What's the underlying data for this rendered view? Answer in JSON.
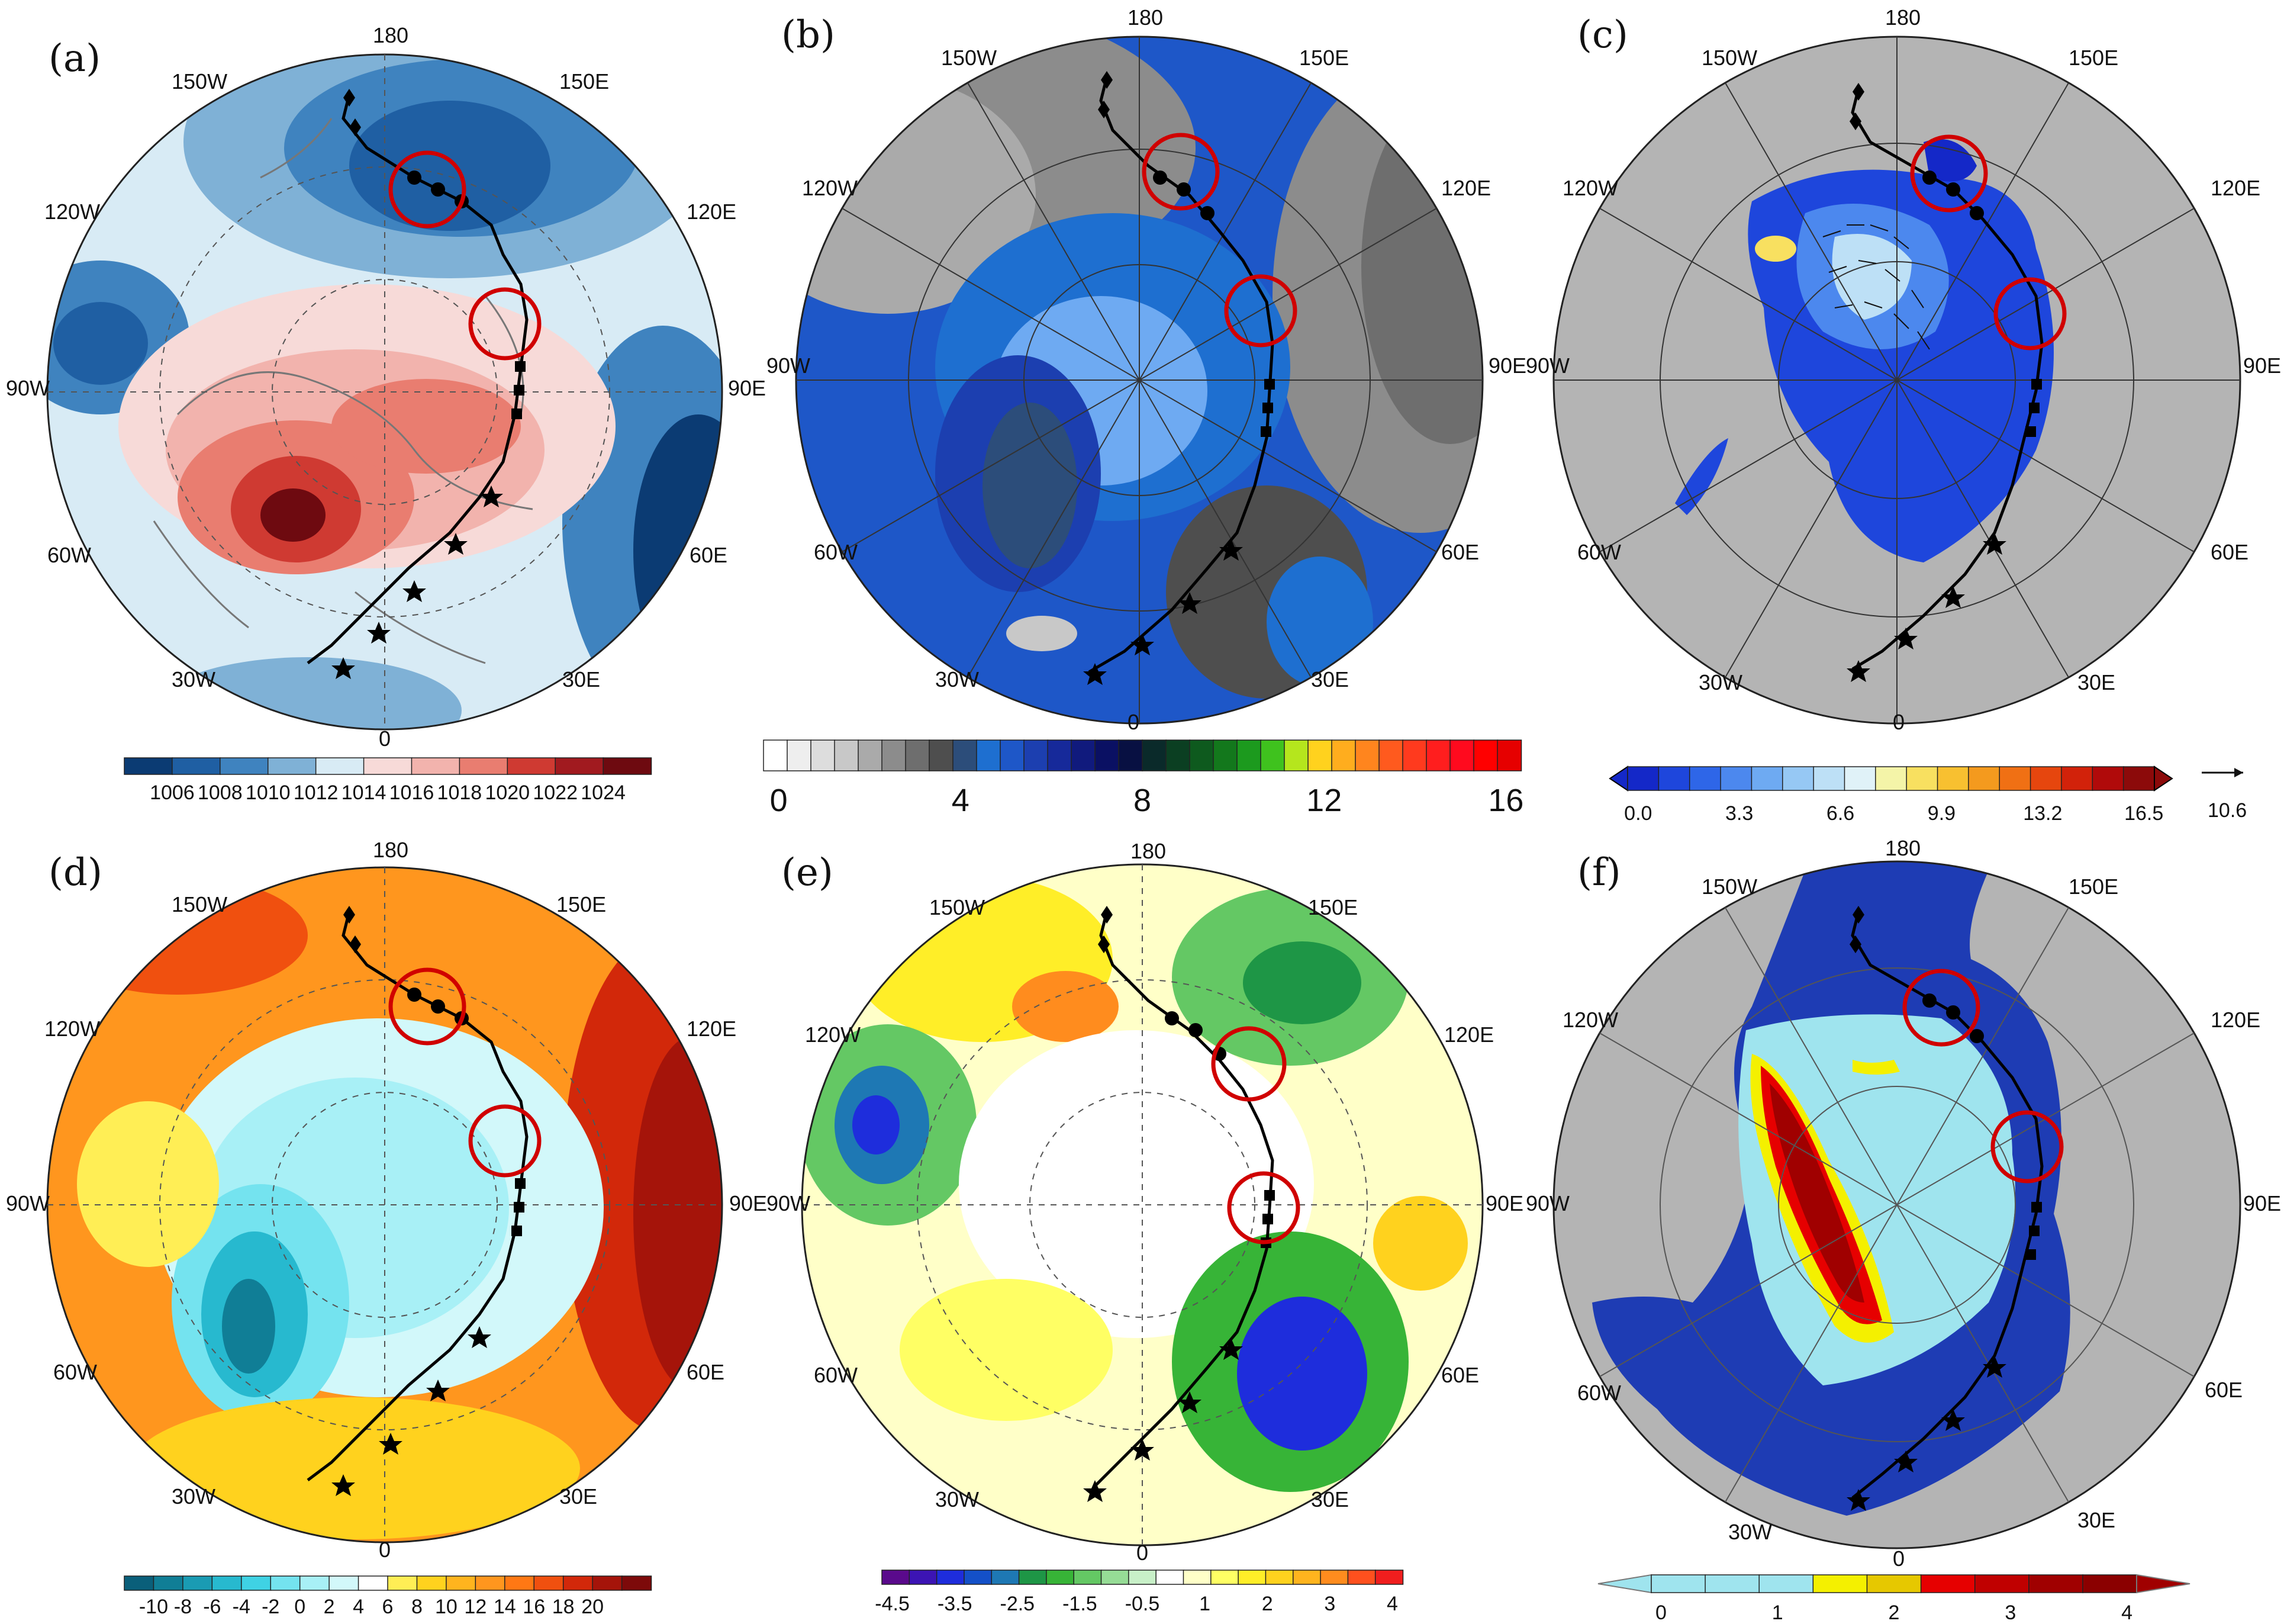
{
  "figure": {
    "panels": [
      {
        "label": "(a)",
        "lon_labels": {
          "n": "180",
          "nw": "150W",
          "ne": "150E",
          "w1": "120W",
          "e1": "120E",
          "w": "90W",
          "e": "90E",
          "sw1": "60W",
          "se1": "60E",
          "sw": "30W",
          "se": "30E",
          "s": "0"
        },
        "colorbar": {
          "ticks": [
            "1006",
            "1008",
            "1010",
            "1012",
            "1014",
            "1016",
            "1018",
            "1020",
            "1022",
            "1024"
          ],
          "colors": [
            "#0b3b73",
            "#1f5fa3",
            "#3f83bf",
            "#7fb1d6",
            "#d8ebf5",
            "#f7dad8",
            "#f2b3ad",
            "#e97d70",
            "#cf3a32",
            "#a11a1f",
            "#6e0a10"
          ]
        }
      },
      {
        "label": "(b)",
        "lon_labels": {
          "n": "180",
          "nw": "150W",
          "ne": "150E",
          "w1": "120W",
          "e1": "120E",
          "w": "90W",
          "e": "90E",
          "sw1": "60W",
          "se1": "60E",
          "sw": "30W",
          "se": "30E",
          "s": "0"
        },
        "colorbar": {
          "ticks": [
            "0",
            "4",
            "8",
            "12",
            "16"
          ],
          "colors": [
            "#ffffff",
            "#eeeeee",
            "#dddddd",
            "#c8c8c8",
            "#aaaaaa",
            "#8c8c8c",
            "#6e6e6e",
            "#4e4e4e",
            "#2c4d7a",
            "#1e6fd0",
            "#1e57c8",
            "#1c3fb0",
            "#16299a",
            "#101a7d",
            "#0a1063",
            "#081042",
            "#0a2a2a",
            "#0b3f22",
            "#0e5a1e",
            "#13781c",
            "#1c9a1e",
            "#3fc21e",
            "#b5e61d",
            "#ffd21e",
            "#ffad1e",
            "#ff851e",
            "#ff5a1e",
            "#ff3a1e",
            "#ff1e1e",
            "#ff0a1e",
            "#ff0000",
            "#e60000"
          ]
        }
      },
      {
        "label": "(c)",
        "lon_labels": {
          "n": "180",
          "nw": "150W",
          "ne": "150E",
          "w1": "120W",
          "e1": "120E",
          "w": "90W",
          "e": "90E",
          "sw1": "60W",
          "se1": "60E",
          "sw": "30W",
          "se": "30E",
          "s": "0"
        },
        "colorbar": {
          "ticks": [
            "0.0",
            "3.3",
            "6.6",
            "9.9",
            "13.2",
            "16.5"
          ],
          "vector_ref": "10.6",
          "colors": [
            "#1428c8",
            "#1e46dc",
            "#2e66e8",
            "#4c88ee",
            "#6eaaf2",
            "#96c8f4",
            "#bde0f6",
            "#e0f2f8",
            "#f4f4a8",
            "#f8e060",
            "#f8c030",
            "#f49a1e",
            "#f07014",
            "#e6460e",
            "#d2220a",
            "#b00a0a",
            "#8c0a0a"
          ]
        }
      },
      {
        "label": "(d)",
        "lon_labels": {
          "n": "180",
          "nw": "150W",
          "ne": "150E",
          "w1": "120W",
          "e1": "120E",
          "w": "90W",
          "e": "90E",
          "sw1": "60W",
          "se1": "60E",
          "sw": "30W",
          "se": "30E",
          "s": "0"
        },
        "colorbar": {
          "ticks": [
            "-10",
            "-8",
            "-6",
            "-4",
            "-2",
            "0",
            "2",
            "4",
            "6",
            "8",
            "10",
            "12",
            "14",
            "16",
            "18",
            "20"
          ],
          "colors": [
            "#0a5f7a",
            "#107e96",
            "#1a9bb3",
            "#27b9cf",
            "#3fd2e4",
            "#74e3ef",
            "#a8f0f6",
            "#d2f8fa",
            "#ffffff",
            "#ffee55",
            "#ffd21e",
            "#ffb41e",
            "#ff961e",
            "#ff7814",
            "#f0500f",
            "#d2280a",
            "#a5140a",
            "#7d0a0a"
          ]
        }
      },
      {
        "label": "(e)",
        "lon_labels": {
          "n": "180",
          "nw": "150W",
          "ne": "150E",
          "w1": "120W",
          "e1": "120E",
          "w": "90W",
          "e": "90E",
          "sw1": "60W",
          "se1": "60E",
          "sw": "30W",
          "se": "30E",
          "s": "0"
        },
        "colorbar": {
          "ticks": [
            "-4.5",
            "-3.5",
            "-2.5",
            "-1.5",
            "-0.5",
            "1",
            "2",
            "3",
            "4"
          ],
          "colors": [
            "#5a0a8c",
            "#3c14b4",
            "#1e2ddc",
            "#1450c8",
            "#1e78b4",
            "#1e9646",
            "#37b437",
            "#64c864",
            "#96dc96",
            "#c8f0c8",
            "#ffffff",
            "#ffffc8",
            "#ffff64",
            "#ffee28",
            "#ffd21e",
            "#ffb41e",
            "#ff8c1e",
            "#ff501e",
            "#f01e1e"
          ]
        }
      },
      {
        "label": "(f)",
        "lon_labels": {
          "n": "180",
          "nw": "150W",
          "ne": "150E",
          "w1": "120W",
          "e1": "120E",
          "w": "90W",
          "e": "90E",
          "sw1": "60W",
          "se1": "60E",
          "sw": "30W",
          "se": "30E",
          "s": "0"
        },
        "colorbar": {
          "ticks": [
            "0",
            "1",
            "2",
            "3",
            "4"
          ],
          "colors": [
            "#9fe4ee",
            "#9fe4ee",
            "#9fe4ee",
            "#f4f000",
            "#e6c800",
            "#e60000",
            "#c00000",
            "#a00000",
            "#8b0000"
          ]
        }
      }
    ]
  },
  "colors": {
    "land_gray": "#b4b4b4",
    "ocean_blue": "#1e3cb4",
    "circle_red": "#d00000",
    "track": "#000000"
  }
}
